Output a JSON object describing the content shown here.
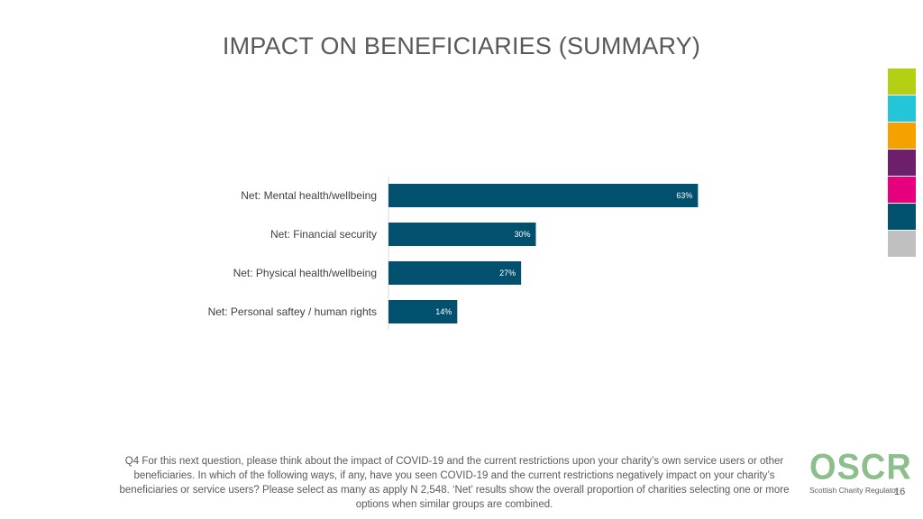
{
  "title": "IMPACT ON BENEFICIARIES (SUMMARY)",
  "colors": {
    "bar": "#00506E",
    "swatches": [
      "#b5cf14",
      "#24c5d6",
      "#f5a100",
      "#6e1f6b",
      "#e6007e",
      "#00506e",
      "#c0c0c0"
    ]
  },
  "chart_data": {
    "type": "bar",
    "orientation": "horizontal",
    "categories": [
      "Net: Mental health/wellbeing",
      "Net: Financial security",
      "Net: Physical health/wellbeing",
      "Net: Personal saftey / human rights"
    ],
    "values": [
      63,
      30,
      27,
      14
    ],
    "value_labels": [
      "63%",
      "30%",
      "27%",
      "14%"
    ],
    "xlim": [
      0,
      100
    ],
    "title": "",
    "xlabel": "",
    "ylabel": "",
    "grid": false
  },
  "footnote": "Q4 For this next question, please think about the impact of COVID-19 and the current restrictions upon your charity’s own service users or other beneficiaries. In which of the following ways, if any, have you seen COVID-19 and the current restrictions negatively impact on your charity’s beneficiaries or service users? Please select as many as apply N 2,548. ‘Net’ results show the overall proportion of charities selecting one or more options when similar groups are combined.",
  "logo": {
    "name": "OSCR",
    "subtitle": "Scottish Charity Regulator"
  },
  "page_number": "16"
}
